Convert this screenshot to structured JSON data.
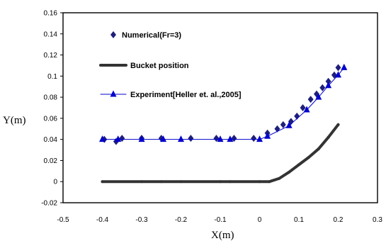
{
  "chart_data": {
    "type": "scatter",
    "title": "",
    "xlabel": "X(m)",
    "ylabel": "Y(m)",
    "xlim": [
      -0.5,
      0.3
    ],
    "ylim": [
      -0.02,
      0.16
    ],
    "x_ticks": [
      -0.5,
      -0.4,
      -0.3,
      -0.2,
      -0.1,
      0,
      0.1,
      0.2,
      0.3
    ],
    "x_tick_labels": [
      "-0.5",
      "-0.4",
      "-0.3",
      "-0.2",
      "-0.1",
      "0",
      "0.1",
      "0.2",
      "0.3"
    ],
    "y_ticks": [
      -0.02,
      0,
      0.02,
      0.04,
      0.06,
      0.08,
      0.1,
      0.12,
      0.14,
      0.16
    ],
    "y_tick_labels": [
      "-0.02",
      "0",
      "0.02",
      "0.04",
      "0.06",
      "0.08",
      "0.1",
      "0.12",
      "0.14",
      "0.16"
    ],
    "grid": false,
    "legend_position": "top-left inside plot",
    "series": [
      {
        "name": "Numerical(Fr=3)",
        "style": "markers",
        "marker": "diamond",
        "color": "#1f1f7a",
        "x": [
          -0.395,
          -0.365,
          -0.35,
          -0.3,
          -0.25,
          -0.175,
          -0.11,
          -0.065,
          -0.015,
          0.02,
          0.045,
          0.06,
          0.08,
          0.095,
          0.11,
          0.13,
          0.145,
          0.16,
          0.175,
          0.19,
          0.2
        ],
        "y": [
          0.04,
          0.038,
          0.041,
          0.041,
          0.041,
          0.041,
          0.041,
          0.041,
          0.041,
          0.046,
          0.05,
          0.054,
          0.057,
          0.062,
          0.07,
          0.078,
          0.083,
          0.089,
          0.095,
          0.101,
          0.108
        ]
      },
      {
        "name": "Bucket position",
        "style": "line-markers",
        "marker": "circle",
        "color": "#333333",
        "x": [
          -0.4,
          -0.3,
          -0.25,
          -0.2,
          -0.1,
          -0.075,
          0,
          0.025,
          0.05,
          0.075,
          0.1,
          0.125,
          0.15,
          0.175,
          0.2
        ],
        "y": [
          0,
          0,
          0,
          0,
          0,
          0,
          0,
          0,
          0.003,
          0.009,
          0.016,
          0.023,
          0.031,
          0.042,
          0.054
        ]
      },
      {
        "name": "Experiment[Heller et. al.,2005]",
        "style": "line-markers",
        "marker": "triangle",
        "color": "#0000cc",
        "x": [
          -0.4,
          -0.36,
          -0.3,
          -0.245,
          -0.2,
          -0.1,
          -0.075,
          0,
          0.02,
          0.075,
          0.12,
          0.15,
          0.175,
          0.2,
          0.215
        ],
        "y": [
          0.04,
          0.04,
          0.04,
          0.04,
          0.04,
          0.04,
          0.04,
          0.04,
          0.043,
          0.053,
          0.068,
          0.08,
          0.091,
          0.101,
          0.108
        ]
      }
    ]
  }
}
